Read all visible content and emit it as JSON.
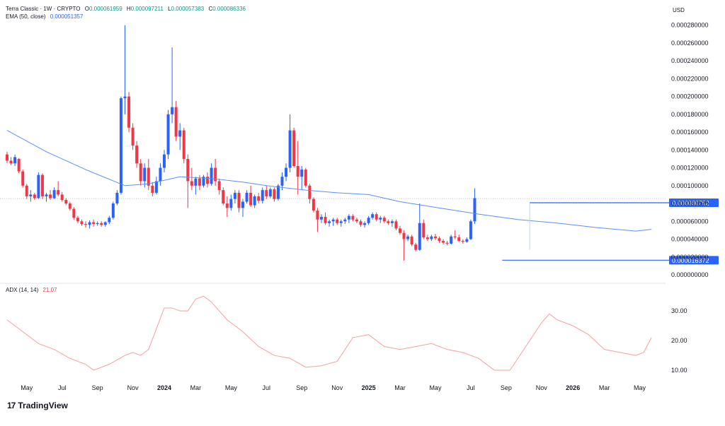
{
  "header": {
    "title": "Terra Classic · 1W · CRYPTO",
    "ohlc": [
      {
        "key": "O",
        "value": "0.000061959"
      },
      {
        "key": "H",
        "value": "0.000097211"
      },
      {
        "key": "L",
        "value": "0.000057383"
      },
      {
        "key": "C",
        "value": "0.000086336"
      }
    ],
    "ema_label": "EMA (50, close)",
    "ema_value": "0.000051357"
  },
  "currency": "USD",
  "adx_header": {
    "label": "ADX (14, 14)",
    "value": "21.07"
  },
  "branding": {
    "logo_mark": "17",
    "name": "TradingView"
  },
  "colors": {
    "up": "#2962ff",
    "down": "#f23645",
    "ema": "#5b8ff9",
    "adx": "#f4a0a0",
    "axis_text": "#131722",
    "badge": "#2962ff"
  },
  "chart_data": [
    {
      "type": "candlestick",
      "title": "Terra Classic · 1W · CRYPTO",
      "ylim": [
        0,
        0.00029
      ],
      "y_ticks": [
        "0.000280000",
        "0.000260000",
        "0.000240000",
        "0.000220000",
        "0.000200000",
        "0.000180000",
        "0.000160000",
        "0.000140000",
        "0.000120000",
        "0.000100000",
        "0.000080000",
        "0.000060000",
        "0.000040000",
        "0.000020000",
        "0.000000000"
      ],
      "y_tick_values": [
        0.00028,
        0.00026,
        0.00024,
        0.00022,
        0.0002,
        0.00018,
        0.00016,
        0.00014,
        0.00012,
        0.0001,
        8e-05,
        6e-05,
        4e-05,
        2e-05,
        0
      ],
      "x_ticks": [
        "May",
        "Jul",
        "Sep",
        "Nov",
        "2024",
        "Mar",
        "May",
        "Jul",
        "Sep",
        "Nov",
        "2025",
        "Mar",
        "May",
        "Jul",
        "Sep",
        "Nov",
        "2026",
        "Mar",
        "May"
      ],
      "x_tick_index": [
        5,
        14,
        23,
        32,
        40,
        48,
        57,
        66,
        75,
        84,
        92,
        100,
        109,
        118,
        127,
        136,
        144,
        152,
        161
      ],
      "x_tick_bold": [
        false,
        false,
        false,
        false,
        true,
        false,
        false,
        false,
        false,
        false,
        true,
        false,
        false,
        false,
        false,
        false,
        true,
        false,
        false
      ],
      "candles": [
        [
          0.000135,
          0.000138,
          0.000125,
          0.000128
        ],
        [
          0.000128,
          0.000132,
          0.000123,
          0.000125
        ],
        [
          0.000125,
          0.000135,
          0.000122,
          0.000132
        ],
        [
          0.00013,
          0.000131,
          0.000114,
          0.000116
        ],
        [
          0.000116,
          0.000118,
          9.8e-05,
          0.0001
        ],
        [
          0.0001,
          0.000102,
          8.5e-05,
          8.8e-05
        ],
        [
          8.8e-05,
          9.5e-05,
          8.2e-05,
          9e-05
        ],
        [
          9e-05,
          9.2e-05,
          8.4e-05,
          8.6e-05
        ],
        [
          8.6e-05,
          0.000115,
          8.5e-05,
          0.000112
        ],
        [
          0.000112,
          0.000114,
          8.5e-05,
          8.8e-05
        ],
        [
          8.8e-05,
          9.2e-05,
          8.2e-05,
          9e-05
        ],
        [
          9e-05,
          9.5e-05,
          8.4e-05,
          8.6e-05
        ],
        [
          8.6e-05,
          9.8e-05,
          8.5e-05,
          9.5e-05
        ],
        [
          9.5e-05,
          0.000105,
          8.8e-05,
          9e-05
        ],
        [
          9e-05,
          9.3e-05,
          8.2e-05,
          8.4e-05
        ],
        [
          8.4e-05,
          8.6e-05,
          7.8e-05,
          8e-05
        ],
        [
          8e-05,
          8.2e-05,
          7.2e-05,
          7.4e-05
        ],
        [
          7.4e-05,
          7.6e-05,
          6.2e-05,
          6.4e-05
        ],
        [
          6.4e-05,
          6.6e-05,
          5.8e-05,
          6e-05
        ],
        [
          6e-05,
          6.2e-05,
          5.5e-05,
          5.7e-05
        ],
        [
          5.7e-05,
          6e-05,
          5.3e-05,
          5.6e-05
        ],
        [
          5.6e-05,
          6.1e-05,
          5.2e-05,
          5.9e-05
        ],
        [
          5.9e-05,
          6.2e-05,
          5.4e-05,
          5.7e-05
        ],
        [
          5.7e-05,
          6e-05,
          5.5e-05,
          5.8e-05
        ],
        [
          5.8e-05,
          6e-05,
          5.4e-05,
          5.6e-05
        ],
        [
          5.6e-05,
          6e-05,
          5.4e-05,
          5.9e-05
        ],
        [
          5.9e-05,
          6.6e-05,
          5.7e-05,
          6.4e-05
        ],
        [
          6.4e-05,
          8.2e-05,
          6.2e-05,
          8e-05
        ],
        [
          8e-05,
          9.5e-05,
          7.8e-05,
          9.2e-05
        ],
        [
          9.2e-05,
          0.0002,
          9e-05,
          0.000198
        ],
        [
          0.000198,
          0.00028,
          0.00018,
          0.0002
        ],
        [
          0.0002,
          0.000205,
          0.00016,
          0.000165
        ],
        [
          0.000165,
          0.00017,
          0.00014,
          0.000145
        ],
        [
          0.000145,
          0.00015,
          0.00012,
          0.000125
        ],
        [
          0.000125,
          0.00013,
          0.0001,
          0.000105
        ],
        [
          0.000105,
          0.000125,
          9.8e-05,
          0.00012
        ],
        [
          0.00012,
          0.00013,
          9.5e-05,
          0.0001
        ],
        [
          0.0001,
          0.000104,
          8.8e-05,
          9.2e-05
        ],
        [
          9.2e-05,
          0.00011,
          9e-05,
          0.000105
        ],
        [
          0.000105,
          0.000125,
          0.0001,
          0.00012
        ],
        [
          0.00012,
          0.00014,
          0.000115,
          0.000135
        ],
        [
          0.000135,
          0.000185,
          0.00013,
          0.00018
        ],
        [
          0.00018,
          0.000255,
          0.00017,
          0.000188
        ],
        [
          0.000188,
          0.000195,
          0.00015,
          0.000155
        ],
        [
          0.000155,
          0.00017,
          0.00014,
          0.000162
        ],
        [
          0.000162,
          0.000165,
          0.000125,
          0.00013
        ],
        [
          0.00013,
          0.000135,
          7.5e-05,
          0.000105
        ],
        [
          0.000105,
          0.00012,
          9.5e-05,
          0.0001
        ],
        [
          0.0001,
          0.00011,
          9e-05,
          0.000108
        ],
        [
          0.000108,
          0.000112,
          9.5e-05,
          0.0001
        ],
        [
          0.0001,
          0.000112,
          9.8e-05,
          0.00011
        ],
        [
          0.00011,
          0.000115,
          9.8e-05,
          0.000102
        ],
        [
          0.000102,
          0.000125,
          0.0001,
          0.00012
        ],
        [
          0.00012,
          0.00013,
          0.0001,
          0.000105
        ],
        [
          0.000105,
          0.000108,
          9e-05,
          9.5e-05
        ],
        [
          9.5e-05,
          9.8e-05,
          7.8e-05,
          8e-05
        ],
        [
          8e-05,
          8.8e-05,
          6.5e-05,
          7.5e-05
        ],
        [
          7.5e-05,
          9e-05,
          7.2e-05,
          8.5e-05
        ],
        [
          8.5e-05,
          9.5e-05,
          8e-05,
          9.2e-05
        ],
        [
          9.2e-05,
          9.5e-05,
          7e-05,
          7.5e-05
        ],
        [
          7.5e-05,
          8.5e-05,
          6.5e-05,
          8.2e-05
        ],
        [
          8.2e-05,
          9.5e-05,
          8e-05,
          9.2e-05
        ],
        [
          9.2e-05,
          0.0001,
          7.6e-05,
          7.8e-05
        ],
        [
          7.8e-05,
          9e-05,
          7.5e-05,
          8.8e-05
        ],
        [
          8.8e-05,
          9.2e-05,
          8e-05,
          8.3e-05
        ],
        [
          8.3e-05,
          9.8e-05,
          8e-05,
          9.5e-05
        ],
        [
          9.5e-05,
          0.0001,
          8.5e-05,
          8.8e-05
        ],
        [
          8.8e-05,
          9.8e-05,
          8.6e-05,
          9.6e-05
        ],
        [
          9.6e-05,
          9.8e-05,
          8.2e-05,
          8.5e-05
        ],
        [
          8.5e-05,
          0.000102,
          8.3e-05,
          0.0001
        ],
        [
          0.0001,
          0.000115,
          9.5e-05,
          0.00011
        ],
        [
          0.00011,
          0.000125,
          0.000105,
          0.00012
        ],
        [
          0.00012,
          0.00018,
          0.000115,
          0.000162
        ],
        [
          0.000162,
          0.000165,
          0.00012,
          0.000122
        ],
        [
          0.000122,
          0.00015,
          9e-05,
          0.00011
        ],
        [
          0.00011,
          0.000122,
          9.5e-05,
          0.000118
        ],
        [
          0.000118,
          0.00012,
          9.8e-05,
          0.0001
        ],
        [
          0.0001,
          0.000102,
          8e-05,
          8.5e-05
        ],
        [
          8.5e-05,
          8.7e-05,
          7e-05,
          7.2e-05
        ],
        [
          7.2e-05,
          7.5e-05,
          4.8e-05,
          6.2e-05
        ],
        [
          6.2e-05,
          6.8e-05,
          5.8e-05,
          6.5e-05
        ],
        [
          6.5e-05,
          7e-05,
          5.6e-05,
          5.8e-05
        ],
        [
          5.8e-05,
          6.2e-05,
          5.4e-05,
          6e-05
        ],
        [
          6e-05,
          6.4e-05,
          5.5e-05,
          6.2e-05
        ],
        [
          6.2e-05,
          6.4e-05,
          5.6e-05,
          5.8e-05
        ],
        [
          5.8e-05,
          6.2e-05,
          5.4e-05,
          6e-05
        ],
        [
          6e-05,
          6.4e-05,
          5.7e-05,
          6.2e-05
        ],
        [
          6.2e-05,
          6.8e-05,
          5.8e-05,
          6.6e-05
        ],
        [
          6.6e-05,
          6.8e-05,
          6e-05,
          6.2e-05
        ],
        [
          6.2e-05,
          6.4e-05,
          5.8e-05,
          6e-05
        ],
        [
          6e-05,
          6.2e-05,
          5.4e-05,
          5.6e-05
        ],
        [
          5.6e-05,
          6e-05,
          5.3e-05,
          5.8e-05
        ],
        [
          5.8e-05,
          6.6e-05,
          5.6e-05,
          6.4e-05
        ],
        [
          6.4e-05,
          7e-05,
          6.2e-05,
          6.8e-05
        ],
        [
          6.8e-05,
          7e-05,
          6e-05,
          6.2e-05
        ],
        [
          6.2e-05,
          6.6e-05,
          5.8e-05,
          6.4e-05
        ],
        [
          6.4e-05,
          6.6e-05,
          5.8e-05,
          6e-05
        ],
        [
          6e-05,
          6.2e-05,
          5.6e-05,
          5.8e-05
        ],
        [
          5.8e-05,
          6.2e-05,
          5.4e-05,
          6e-05
        ],
        [
          6e-05,
          6.2e-05,
          5e-05,
          5.2e-05
        ],
        [
          5.2e-05,
          5.5e-05,
          4.5e-05,
          4.7e-05
        ],
        [
          4.7e-05,
          5e-05,
          1.6e-05,
          4e-05
        ],
        [
          4e-05,
          4.5e-05,
          3.8e-05,
          4.3e-05
        ],
        [
          4.3e-05,
          4.5e-05,
          3.2e-05,
          3.4e-05
        ],
        [
          3.4e-05,
          3.6e-05,
          2.6e-05,
          2.8e-05
        ],
        [
          2.8e-05,
          8e-05,
          2.7e-05,
          5.8e-05
        ],
        [
          5.8e-05,
          6.2e-05,
          4e-05,
          4.2e-05
        ],
        [
          4.2e-05,
          4.5e-05,
          3.8e-05,
          4e-05
        ],
        [
          4e-05,
          4.5e-05,
          3.8e-05,
          4.3e-05
        ],
        [
          4.3e-05,
          4.6e-05,
          3.9e-05,
          4.1e-05
        ],
        [
          4.1e-05,
          4.3e-05,
          3.6e-05,
          3.8e-05
        ],
        [
          3.8e-05,
          4e-05,
          3.4e-05,
          3.6e-05
        ],
        [
          3.6e-05,
          3.8e-05,
          3.3e-05,
          3.5e-05
        ],
        [
          3.5e-05,
          4.5e-05,
          3.4e-05,
          4.3e-05
        ],
        [
          4.3e-05,
          5e-05,
          4e-05,
          4.2e-05
        ],
        [
          4.2e-05,
          4.5e-05,
          3.7e-05,
          3.8e-05
        ],
        [
          3.8e-05,
          4e-05,
          3.5e-05,
          3.7e-05
        ],
        [
          3.7e-05,
          4.2e-05,
          3.6e-05,
          4e-05
        ],
        [
          4e-05,
          6.2e-05,
          3.9e-05,
          6e-05
        ],
        [
          6e-05,
          9.7e-05,
          5.7e-05,
          8.6e-05
        ]
      ],
      "ema": [
        [
          0,
          0.000162
        ],
        [
          10,
          0.000138
        ],
        [
          20,
          0.000118
        ],
        [
          30,
          0.0001
        ],
        [
          36,
          0.000102
        ],
        [
          44,
          0.00011
        ],
        [
          52,
          0.000108
        ],
        [
          60,
          0.000104
        ],
        [
          66,
          0.0001
        ],
        [
          76,
          9.5e-05
        ],
        [
          84,
          9.2e-05
        ],
        [
          92,
          9e-05
        ],
        [
          100,
          8.2e-05
        ],
        [
          110,
          7.5e-05
        ],
        [
          120,
          6.8e-05
        ],
        [
          130,
          6.2e-05
        ],
        [
          140,
          5.8e-05
        ],
        [
          150,
          5.3e-05
        ],
        [
          160,
          4.9e-05
        ],
        [
          164,
          5.1e-05
        ]
      ],
      "price_line": {
        "value": 8.08e-05,
        "label": "0.000080752"
      },
      "annotations": [
        {
          "type": "horizontal",
          "value": 8.08e-05,
          "from_index": 133,
          "to_index": 164,
          "label": "0.000080752"
        },
        {
          "type": "horizontal",
          "value": 1.6372e-05,
          "from_index": 126,
          "to_index": 164,
          "label": "0.000016372"
        }
      ]
    },
    {
      "type": "line",
      "title": "ADX (14, 14)",
      "series": [
        {
          "name": "ADX (14, 14)",
          "last_value": "21.07"
        }
      ],
      "ylim": [
        5,
        36
      ],
      "y_ticks": [
        "30.00",
        "20.00",
        "10.00"
      ],
      "y_tick_values": [
        30,
        20,
        10
      ],
      "values": [
        [
          0,
          27
        ],
        [
          4,
          23
        ],
        [
          8,
          19
        ],
        [
          12,
          17
        ],
        [
          16,
          14
        ],
        [
          20,
          12
        ],
        [
          22,
          10
        ],
        [
          26,
          12
        ],
        [
          30,
          15
        ],
        [
          32,
          16
        ],
        [
          34,
          15
        ],
        [
          36,
          17
        ],
        [
          38,
          24
        ],
        [
          40,
          31
        ],
        [
          42,
          31
        ],
        [
          44,
          30
        ],
        [
          46,
          30
        ],
        [
          48,
          34
        ],
        [
          50,
          35
        ],
        [
          52,
          33
        ],
        [
          56,
          27
        ],
        [
          60,
          23
        ],
        [
          64,
          18
        ],
        [
          68,
          15
        ],
        [
          72,
          14
        ],
        [
          76,
          11
        ],
        [
          80,
          11.5
        ],
        [
          84,
          13
        ],
        [
          88,
          21
        ],
        [
          92,
          22
        ],
        [
          96,
          18
        ],
        [
          100,
          17
        ],
        [
          104,
          18
        ],
        [
          108,
          19
        ],
        [
          112,
          17
        ],
        [
          116,
          16
        ],
        [
          120,
          14
        ],
        [
          124,
          10
        ],
        [
          128,
          10
        ],
        [
          132,
          18
        ],
        [
          136,
          26
        ],
        [
          138,
          29
        ],
        [
          140,
          27
        ],
        [
          144,
          25
        ],
        [
          148,
          22
        ],
        [
          152,
          17
        ],
        [
          156,
          16
        ],
        [
          160,
          15
        ],
        [
          162,
          16
        ],
        [
          164,
          21
        ]
      ]
    }
  ]
}
